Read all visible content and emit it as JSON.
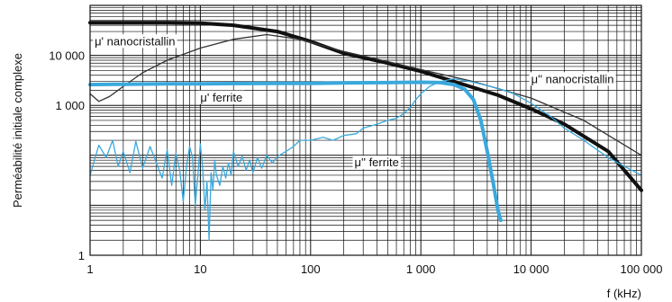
{
  "chart_data": {
    "type": "line",
    "xlabel": "f (kHz)",
    "ylabel": "Perméabilité initiale complexe",
    "x_scale": "log",
    "y_scale": "log",
    "xlim": [
      1,
      100000
    ],
    "ylim": [
      1,
      100000
    ],
    "grid": true,
    "x_ticks": [
      {
        "value": 1,
        "label": "1"
      },
      {
        "value": 10,
        "label": "10"
      },
      {
        "value": 100,
        "label": "100"
      },
      {
        "value": 1000,
        "label": "1 000"
      },
      {
        "value": 10000,
        "label": "10 000"
      },
      {
        "value": 100000,
        "label": "100 000"
      }
    ],
    "y_ticks": [
      {
        "value": 1,
        "label": "1"
      },
      {
        "value": 1000,
        "label": "1 000"
      },
      {
        "value": 10000,
        "label": "10 000"
      }
    ],
    "series": [
      {
        "name": "μ' nanocristallin",
        "color": "#111111",
        "x": [
          1,
          2,
          5,
          10,
          20,
          50,
          100,
          200,
          500,
          1000,
          2000,
          5000,
          10000,
          20000,
          50000,
          100000
        ],
        "y": [
          45000,
          45000,
          45000,
          44000,
          40000,
          30000,
          19000,
          11000,
          7000,
          4800,
          3000,
          1600,
          850,
          420,
          120,
          20
        ]
      },
      {
        "name": "μ'' nanocristallin",
        "color": "#333333",
        "x": [
          1,
          1.2,
          1.5,
          2,
          3,
          5,
          10,
          20,
          40,
          80,
          200,
          500,
          1000,
          3000,
          10000,
          30000,
          100000
        ],
        "y": [
          1700,
          1200,
          1500,
          2400,
          4500,
          8000,
          14000,
          21000,
          26000,
          21000,
          12000,
          7500,
          5200,
          3000,
          1400,
          500,
          100
        ]
      },
      {
        "name": "μ' ferrite",
        "color": "#3aa8dc",
        "x": [
          1,
          2,
          5,
          10,
          50,
          100,
          200,
          500,
          1000,
          1500,
          2000,
          2500,
          3000,
          3500,
          4000,
          4500,
          5000,
          5300
        ],
        "y": [
          2600,
          2650,
          2700,
          2700,
          2750,
          2750,
          2800,
          2850,
          2900,
          2850,
          2600,
          2100,
          1300,
          500,
          120,
          30,
          8,
          5
        ]
      },
      {
        "name": "μ'' ferrite",
        "color": "#3aa8dc",
        "x": [
          1,
          1.2,
          1.4,
          1.6,
          1.8,
          2,
          2.3,
          2.6,
          3,
          3.5,
          4,
          4.5,
          5,
          5.5,
          6,
          6.5,
          7,
          7.5,
          8,
          8.5,
          9,
          9.5,
          10,
          10.5,
          11,
          11.5,
          12,
          12.5,
          13,
          13.5,
          14,
          15,
          16,
          17,
          18,
          19,
          20,
          22,
          24,
          26,
          28,
          30,
          33,
          36,
          40,
          45,
          50,
          60,
          70,
          80,
          100,
          130,
          160,
          200,
          260,
          300,
          400,
          500,
          600,
          700,
          800,
          900,
          1000,
          1200,
          1500,
          2000,
          3000,
          5000,
          7000,
          10000,
          15000,
          20000,
          30000,
          50000,
          70000,
          100000
        ],
        "y": [
          40,
          160,
          90,
          200,
          60,
          120,
          45,
          190,
          55,
          150,
          70,
          35,
          130,
          25,
          110,
          50,
          12,
          60,
          150,
          90,
          10,
          40,
          170,
          55,
          8,
          30,
          2,
          45,
          20,
          80,
          40,
          25,
          60,
          35,
          70,
          40,
          120,
          60,
          95,
          50,
          80,
          45,
          90,
          55,
          100,
          70,
          95,
          120,
          150,
          200,
          200,
          230,
          200,
          250,
          270,
          350,
          420,
          500,
          550,
          680,
          900,
          1300,
          1700,
          2400,
          3000,
          3400,
          2900,
          2200,
          1700,
          1100,
          600,
          350,
          200,
          90,
          60,
          40
        ]
      }
    ],
    "annotations": [
      {
        "text": "μ' nanocristallin",
        "x": 1.1,
        "y": 16000
      },
      {
        "text": "μ' ferrite",
        "x": 10,
        "y": 1200
      },
      {
        "text": "μ'' nanocristallin",
        "x": 10000,
        "y": 2800
      },
      {
        "text": "μ'' ferrite",
        "x": 250,
        "y": 60
      }
    ]
  }
}
